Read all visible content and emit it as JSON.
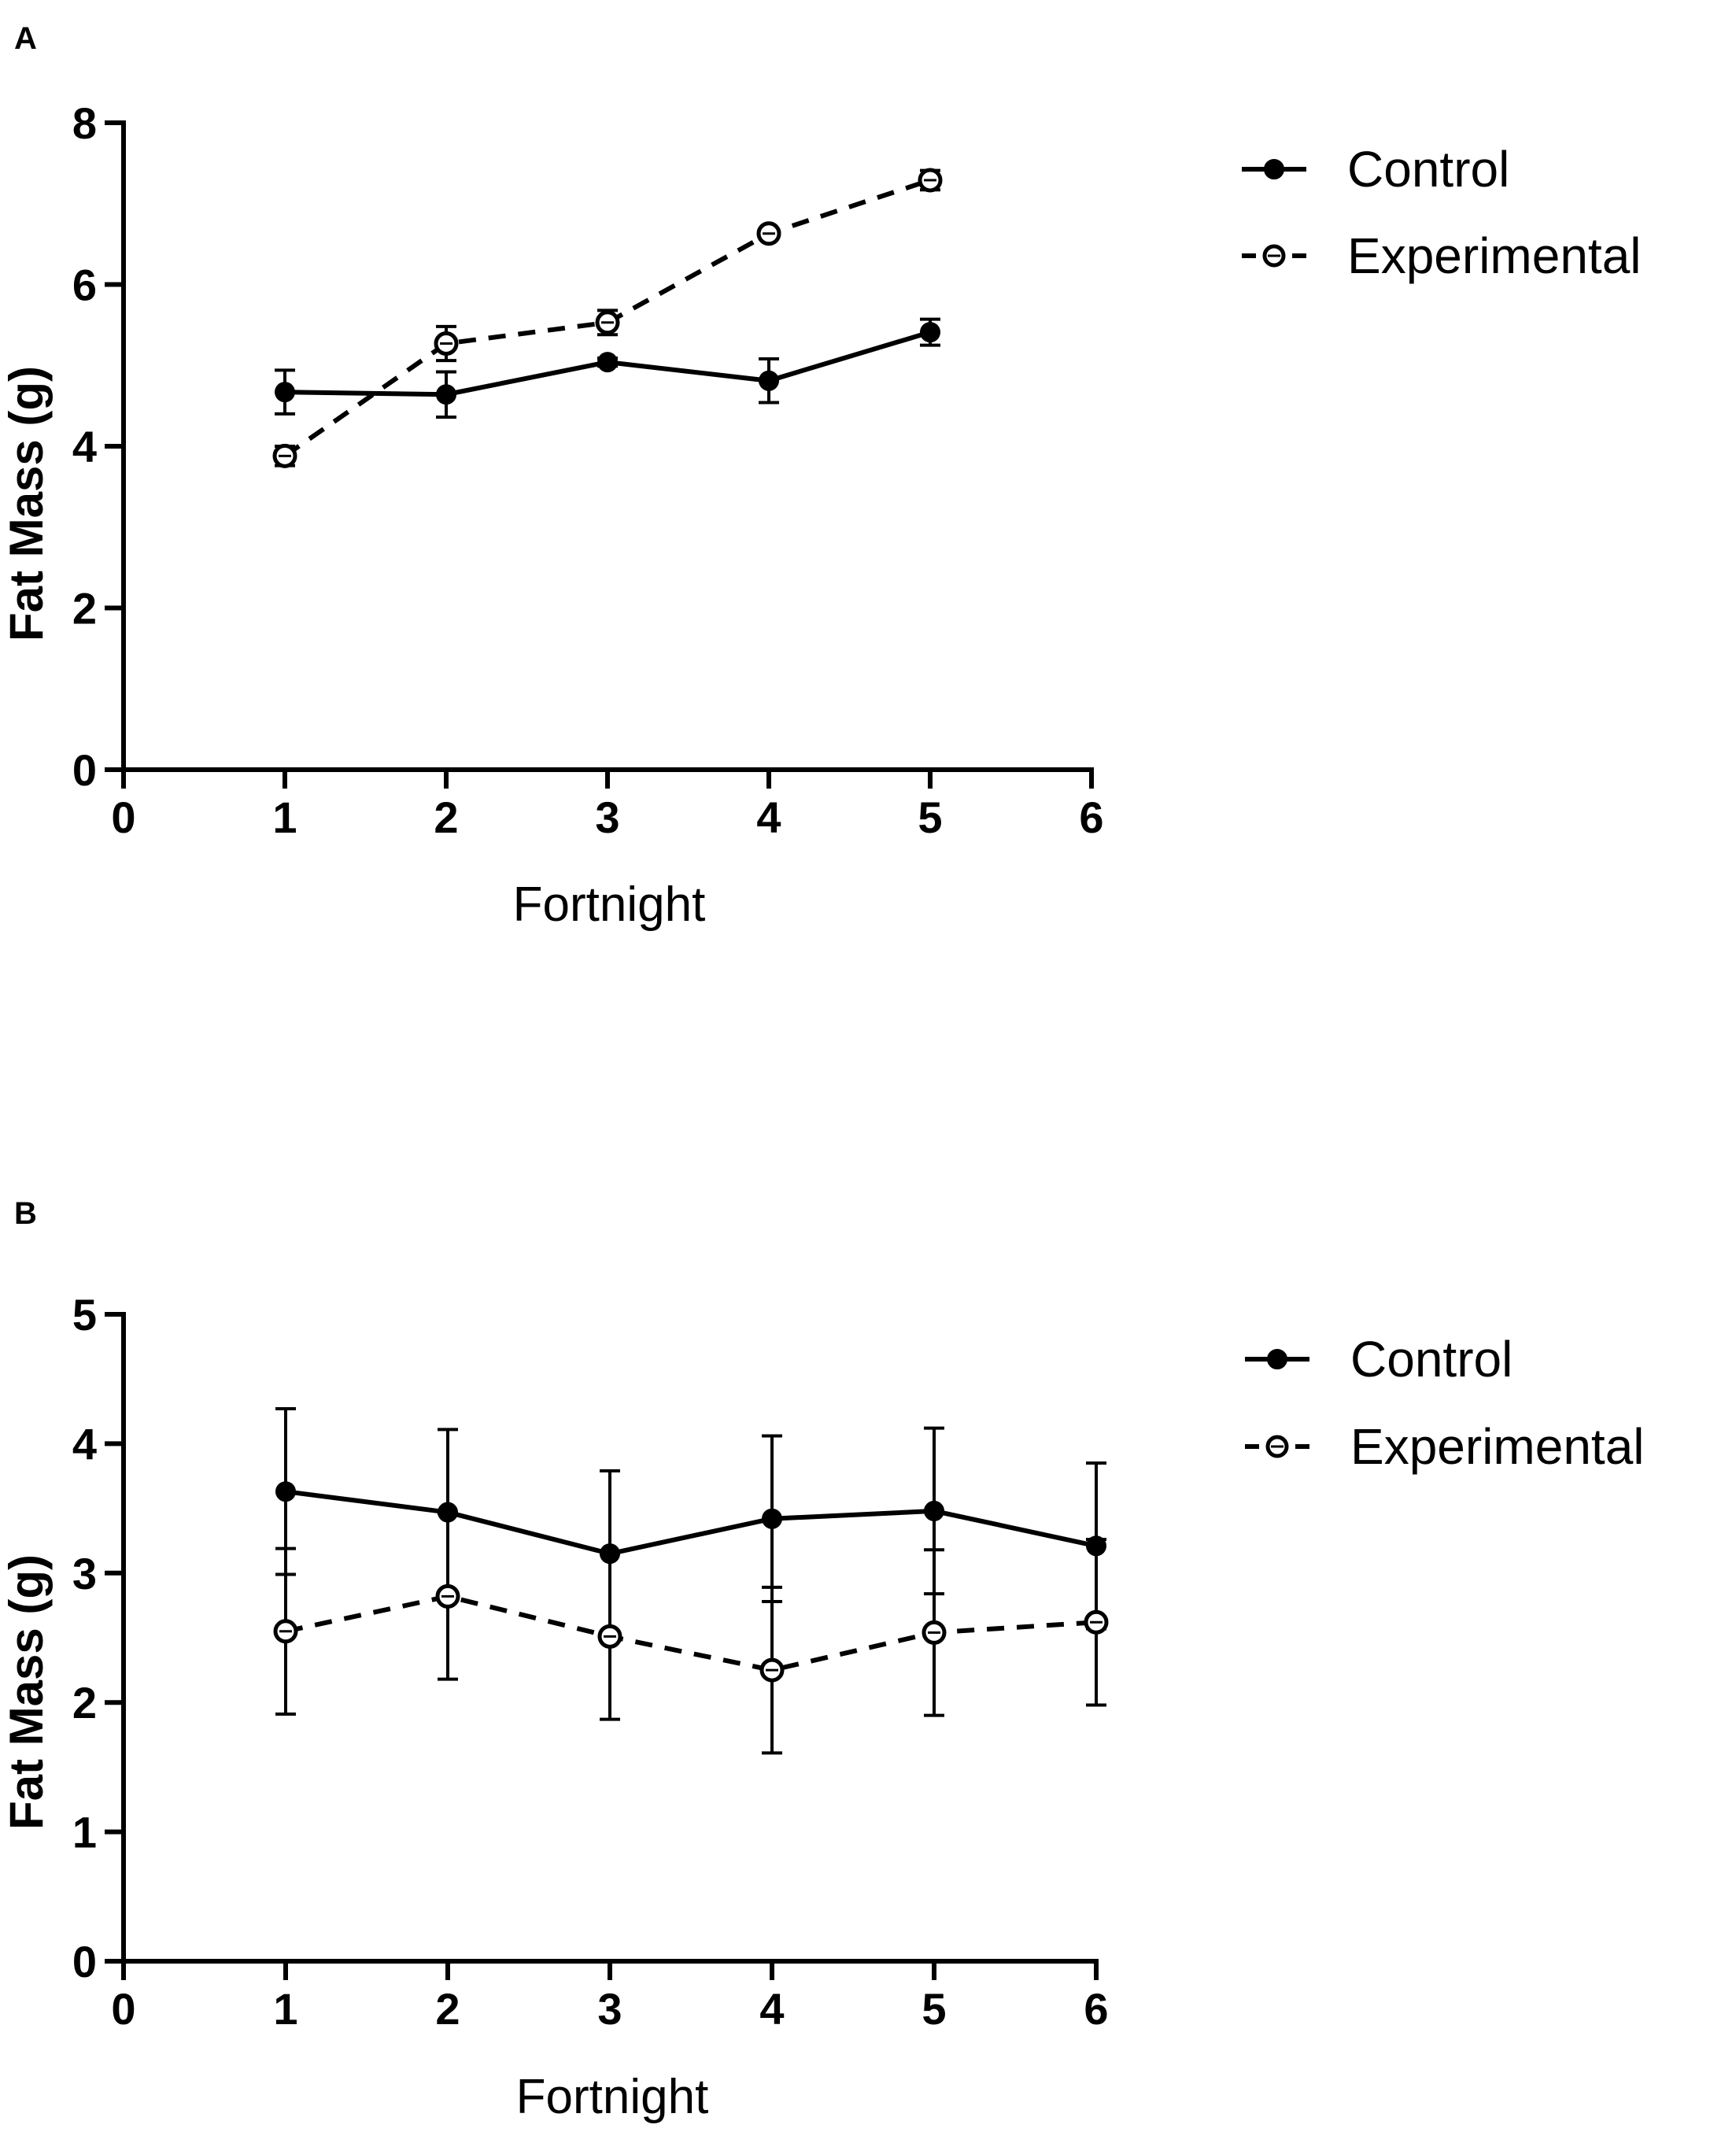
{
  "chart_data": [
    {
      "type": "line",
      "panel_label": "A",
      "xlabel": "Fortnight",
      "ylabel": "Fat Mass (g)",
      "xlim": [
        0,
        6
      ],
      "ylim": [
        0,
        8
      ],
      "xticks": [
        "0",
        "1",
        "2",
        "3",
        "4",
        "5",
        "6"
      ],
      "yticks": [
        "0",
        "2",
        "4",
        "6",
        "8"
      ],
      "legend_position": "right",
      "series": [
        {
          "name": "Control",
          "style": "solid",
          "marker": "filled-circle",
          "x": [
            1,
            2,
            3,
            4,
            5
          ],
          "values": [
            4.67,
            4.64,
            5.04,
            4.81,
            5.41
          ],
          "error": [
            0.27,
            0.28,
            0.05,
            0.27,
            0.16
          ]
        },
        {
          "name": "Experimental",
          "style": "dashed",
          "marker": "open-circle",
          "x": [
            1,
            2,
            3,
            4,
            5
          ],
          "values": [
            3.88,
            5.27,
            5.53,
            6.63,
            7.29
          ],
          "error": [
            0.12,
            0.21,
            0.15,
            0.05,
            0.12
          ]
        }
      ]
    },
    {
      "type": "line",
      "panel_label": "B",
      "xlabel": "Fortnight",
      "ylabel": "Fat Mass (g)",
      "xlim": [
        0,
        6
      ],
      "ylim": [
        0,
        5
      ],
      "xticks": [
        "0",
        "1",
        "2",
        "3",
        "4",
        "5",
        "6"
      ],
      "yticks": [
        "0",
        "1",
        "2",
        "3",
        "4",
        "5"
      ],
      "legend_position": "right",
      "series": [
        {
          "name": "Control",
          "style": "solid",
          "marker": "filled-circle",
          "x": [
            1,
            2,
            3,
            4,
            5,
            6
          ],
          "values": [
            3.63,
            3.47,
            3.15,
            3.42,
            3.48,
            3.21
          ],
          "error": [
            0.64,
            0.64,
            0.64,
            0.64,
            0.64,
            0.64
          ]
        },
        {
          "name": "Experimental",
          "style": "dashed",
          "marker": "open-circle",
          "x": [
            1,
            2,
            3,
            4,
            5,
            6
          ],
          "values": [
            2.55,
            2.82,
            2.51,
            2.25,
            2.54,
            2.62
          ],
          "error": [
            0.64,
            0.64,
            0.64,
            0.64,
            0.64,
            0.64
          ]
        }
      ]
    }
  ]
}
